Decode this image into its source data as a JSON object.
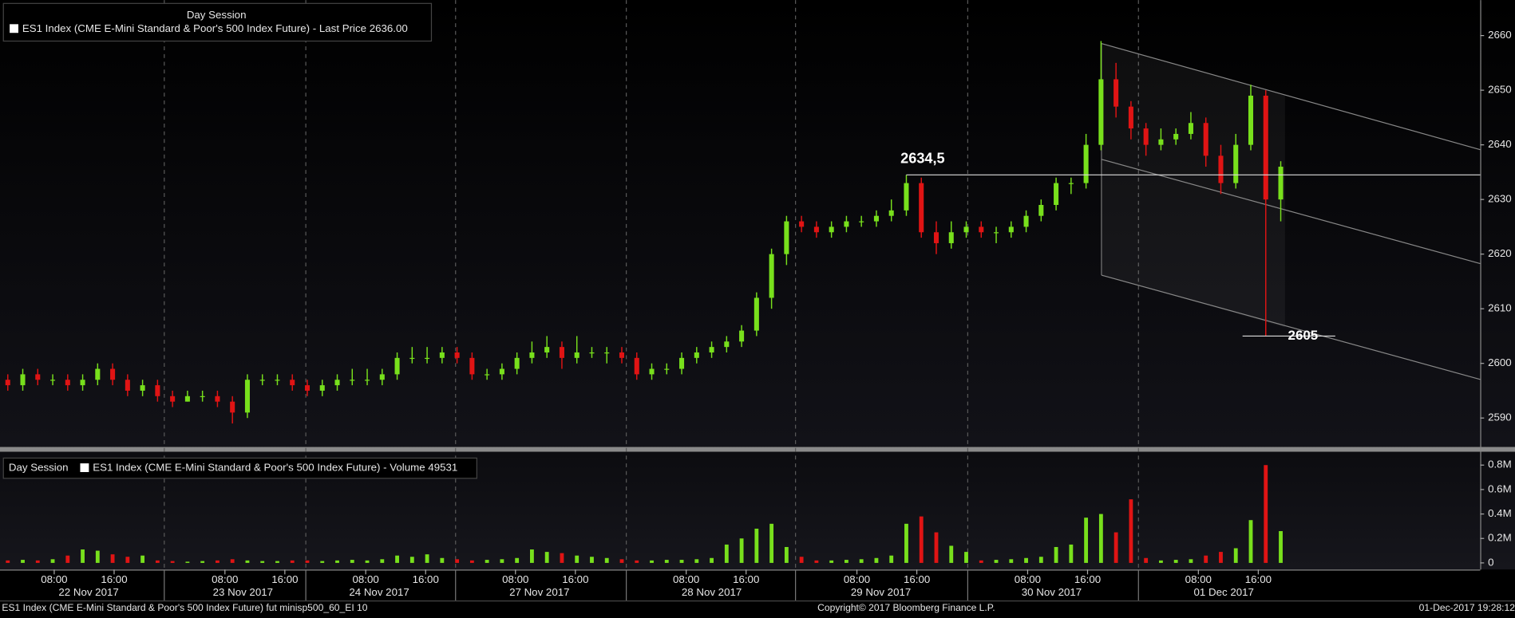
{
  "chart_data": [
    {
      "type": "candlestick",
      "legend_session": "Day Session",
      "legend_label": "ES1 Index (CME E-Mini Standard & Poor's 500 Index Future) - Last Price 2636.00",
      "up_color": "#78e01c",
      "down_color": "#e01414",
      "xlim": [
        -0.52,
        98.32
      ],
      "ylim": [
        2584.7,
        2666.5
      ],
      "yticks": [
        2590,
        2600,
        2610,
        2620,
        2630,
        2640,
        2650,
        2660
      ],
      "xticks": [
        {
          "value": 3.1,
          "label": "08:00"
        },
        {
          "value": 7.1,
          "label": "16:00"
        },
        {
          "value": 14.5,
          "label": "08:00"
        },
        {
          "value": 18.5,
          "label": "16:00"
        },
        {
          "value": 23.9,
          "label": "08:00"
        },
        {
          "value": 27.9,
          "label": "16:00"
        },
        {
          "value": 33.9,
          "label": "08:00"
        },
        {
          "value": 37.9,
          "label": "16:00"
        },
        {
          "value": 45.3,
          "label": "08:00"
        },
        {
          "value": 49.3,
          "label": "16:00"
        },
        {
          "value": 56.7,
          "label": "08:00"
        },
        {
          "value": 60.7,
          "label": "16:00"
        },
        {
          "value": 68.1,
          "label": "08:00"
        },
        {
          "value": 72.1,
          "label": "16:00"
        },
        {
          "value": 79.5,
          "label": "08:00"
        },
        {
          "value": 83.5,
          "label": "16:00"
        }
      ],
      "date_labels": [
        {
          "value": 5.4,
          "label": "22 Nov 2017"
        },
        {
          "value": 15.7,
          "label": "23 Nov 2017"
        },
        {
          "value": 24.8,
          "label": "24 Nov 2017"
        },
        {
          "value": 35.5,
          "label": "27 Nov 2017"
        },
        {
          "value": 47,
          "label": "28 Nov 2017"
        },
        {
          "value": 58.3,
          "label": "29 Nov 2017"
        },
        {
          "value": 69.7,
          "label": "30 Nov 2017"
        },
        {
          "value": 81.2,
          "label": "01 Dec 2017"
        }
      ],
      "xgrid": [
        10.45,
        19.9,
        29.9,
        41.3,
        52.6,
        64.1,
        75.5
      ],
      "annotations": [
        {
          "value": 2634.5,
          "label": "2634,5"
        },
        {
          "value": 2605,
          "label": "2605"
        }
      ],
      "ohlc": [
        [
          2597,
          2598,
          2595,
          2596
        ],
        [
          2596,
          2599,
          2595,
          2598
        ],
        [
          2598,
          2599,
          2596,
          2597
        ],
        [
          2597,
          2598,
          2596,
          2597
        ],
        [
          2597,
          2598,
          2595,
          2596
        ],
        [
          2596,
          2598,
          2595,
          2597
        ],
        [
          2597,
          2600,
          2596,
          2599
        ],
        [
          2599,
          2600,
          2596,
          2597
        ],
        [
          2597,
          2598,
          2594,
          2595
        ],
        [
          2595,
          2597,
          2594,
          2596
        ],
        [
          2596,
          2597,
          2593,
          2594
        ],
        [
          2594,
          2595,
          2592,
          2593
        ],
        [
          2593,
          2595,
          2593,
          2594
        ],
        [
          2594,
          2595,
          2593,
          2594
        ],
        [
          2594,
          2595,
          2592,
          2593
        ],
        [
          2593,
          2594,
          2589,
          2591
        ],
        [
          2591,
          2598,
          2590,
          2597
        ],
        [
          2597,
          2598,
          2596,
          2597
        ],
        [
          2597,
          2598,
          2596,
          2597
        ],
        [
          2597,
          2598,
          2595,
          2596
        ],
        [
          2596,
          2597,
          2594,
          2595
        ],
        [
          2595,
          2597,
          2594,
          2596
        ],
        [
          2596,
          2598,
          2595,
          2597
        ],
        [
          2597,
          2599,
          2596,
          2597
        ],
        [
          2597,
          2599,
          2596,
          2597
        ],
        [
          2597,
          2599,
          2596,
          2598
        ],
        [
          2598,
          2602,
          2597,
          2601
        ],
        [
          2601,
          2603,
          2600,
          2601
        ],
        [
          2601,
          2603,
          2600,
          2601
        ],
        [
          2601,
          2603,
          2600,
          2602
        ],
        [
          2602,
          2603,
          2600,
          2601
        ],
        [
          2601,
          2602,
          2597,
          2598
        ],
        [
          2598,
          2599,
          2597,
          2598
        ],
        [
          2598,
          2600,
          2597,
          2599
        ],
        [
          2599,
          2602,
          2598,
          2601
        ],
        [
          2601,
          2604,
          2600,
          2602
        ],
        [
          2602,
          2605,
          2601,
          2603
        ],
        [
          2603,
          2604,
          2599,
          2601
        ],
        [
          2601,
          2605,
          2600,
          2602
        ],
        [
          2602,
          2603,
          2601,
          2602
        ],
        [
          2602,
          2603,
          2600,
          2602
        ],
        [
          2602,
          2603,
          2600,
          2601
        ],
        [
          2601,
          2602,
          2597,
          2598
        ],
        [
          2598,
          2600,
          2597,
          2599
        ],
        [
          2599,
          2600,
          2598,
          2599
        ],
        [
          2599,
          2602,
          2598,
          2601
        ],
        [
          2601,
          2603,
          2600,
          2602
        ],
        [
          2602,
          2604,
          2601,
          2603
        ],
        [
          2603,
          2605,
          2602,
          2604
        ],
        [
          2604,
          2607,
          2603,
          2606
        ],
        [
          2606,
          2613,
          2605,
          2612
        ],
        [
          2612,
          2621,
          2610,
          2620
        ],
        [
          2620,
          2627,
          2618,
          2626
        ],
        [
          2626,
          2627,
          2624,
          2625
        ],
        [
          2625,
          2626,
          2623,
          2624
        ],
        [
          2624,
          2626,
          2623,
          2625
        ],
        [
          2625,
          2627,
          2624,
          2626
        ],
        [
          2626,
          2627,
          2625,
          2626
        ],
        [
          2626,
          2628,
          2625,
          2627
        ],
        [
          2627,
          2630,
          2626,
          2628
        ],
        [
          2628,
          2634.5,
          2627,
          2633
        ],
        [
          2633,
          2634,
          2623,
          2624
        ],
        [
          2624,
          2626,
          2620,
          2622
        ],
        [
          2622,
          2626,
          2621,
          2624
        ],
        [
          2624,
          2626,
          2623,
          2625
        ],
        [
          2625,
          2626,
          2623,
          2624
        ],
        [
          2624,
          2625,
          2622,
          2624
        ],
        [
          2624,
          2626,
          2623,
          2625
        ],
        [
          2625,
          2628,
          2624,
          2627
        ],
        [
          2627,
          2630,
          2626,
          2629
        ],
        [
          2629,
          2634,
          2628,
          2633
        ],
        [
          2633,
          2634,
          2631,
          2633
        ],
        [
          2633,
          2642,
          2632,
          2640
        ],
        [
          2640,
          2659,
          2639,
          2652
        ],
        [
          2652,
          2655,
          2645,
          2647
        ],
        [
          2647,
          2648,
          2641,
          2643
        ],
        [
          2643,
          2644,
          2638,
          2640
        ],
        [
          2640,
          2643,
          2639,
          2641
        ],
        [
          2641,
          2643,
          2640,
          2642
        ],
        [
          2642,
          2646,
          2641,
          2644
        ],
        [
          2644,
          2645,
          2636,
          2638
        ],
        [
          2638,
          2640,
          2631,
          2633
        ],
        [
          2633,
          2642,
          2632,
          2640
        ],
        [
          2640,
          2651,
          2639,
          2649
        ],
        [
          2649,
          2650,
          2605,
          2630
        ],
        [
          2630,
          2637,
          2626,
          2636
        ]
      ]
    },
    {
      "type": "bar",
      "legend_session": "Day Session",
      "legend_label": "ES1 Index (CME E-Mini Standard & Poor's 500 Index Future) - Volume 49531",
      "ylim": [
        -54400,
        908700
      ],
      "yticks": [
        0,
        {
          "value": 200000,
          "label": "0.2M"
        },
        {
          "value": 400000,
          "label": "0.4M"
        },
        {
          "value": 600000,
          "label": "0.6M"
        },
        {
          "value": 800000,
          "label": "0.8M"
        }
      ],
      "values": [
        20000,
        25000,
        20000,
        30000,
        60000,
        110000,
        100000,
        70000,
        50000,
        60000,
        20000,
        15000,
        10000,
        15000,
        20000,
        30000,
        20000,
        15000,
        15000,
        20000,
        20000,
        15000,
        20000,
        25000,
        20000,
        30000,
        60000,
        50000,
        70000,
        40000,
        30000,
        20000,
        25000,
        30000,
        40000,
        110000,
        90000,
        80000,
        60000,
        50000,
        40000,
        30000,
        20000,
        20000,
        25000,
        25000,
        30000,
        40000,
        150000,
        200000,
        280000,
        320000,
        130000,
        50000,
        20000,
        20000,
        25000,
        30000,
        40000,
        60000,
        320000,
        380000,
        250000,
        140000,
        90000,
        20000,
        25000,
        30000,
        40000,
        50000,
        130000,
        150000,
        370000,
        400000,
        250000,
        520000,
        40000,
        20000,
        25000,
        30000,
        60000,
        90000,
        120000,
        350000,
        800000,
        260000
      ]
    }
  ],
  "footer": {
    "left": "ES1 Index (CME E-Mini Standard & Poor's 500 Index Future) fut minisp500_60_EI 10",
    "center": "Copyright© 2017 Bloomberg Finance L.P.",
    "right": "01-Dec-2017 19:28:12"
  }
}
